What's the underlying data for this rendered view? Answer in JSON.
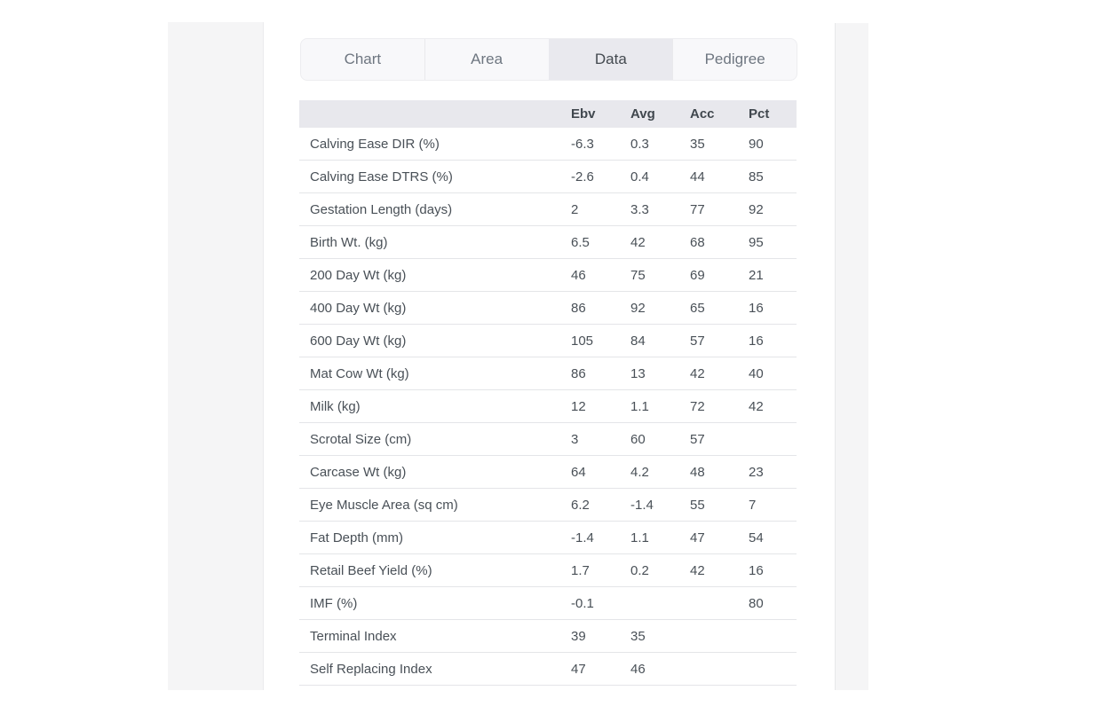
{
  "tabs": {
    "items": [
      {
        "label": "Chart",
        "active": false
      },
      {
        "label": "Area",
        "active": false
      },
      {
        "label": "Data",
        "active": true
      },
      {
        "label": "Pedigree",
        "active": false
      }
    ]
  },
  "table": {
    "columns": [
      "Ebv",
      "Avg",
      "Acc",
      "Pct"
    ],
    "rows": [
      {
        "label": "Calving Ease DIR (%)",
        "values": [
          "-6.3",
          "0.3",
          "35",
          "90"
        ]
      },
      {
        "label": "Calving Ease DTRS (%)",
        "values": [
          "-2.6",
          "0.4",
          "44",
          "85"
        ]
      },
      {
        "label": "Gestation Length (days)",
        "values": [
          "2",
          "3.3",
          "77",
          "92"
        ]
      },
      {
        "label": "Birth Wt. (kg)",
        "values": [
          "6.5",
          "42",
          "68",
          "95"
        ]
      },
      {
        "label": "200 Day Wt (kg)",
        "values": [
          "46",
          "75",
          "69",
          "21"
        ]
      },
      {
        "label": "400 Day Wt (kg)",
        "values": [
          "86",
          "92",
          "65",
          "16"
        ]
      },
      {
        "label": "600 Day Wt (kg)",
        "values": [
          "105",
          "84",
          "57",
          "16"
        ]
      },
      {
        "label": "Mat Cow Wt (kg)",
        "values": [
          "86",
          "13",
          "42",
          "40"
        ]
      },
      {
        "label": "Milk (kg)",
        "values": [
          "12",
          "1.1",
          "72",
          "42"
        ]
      },
      {
        "label": "Scrotal Size (cm)",
        "values": [
          "3",
          "60",
          "57",
          ""
        ]
      },
      {
        "label": "Carcase Wt (kg)",
        "values": [
          "64",
          "4.2",
          "48",
          "23"
        ]
      },
      {
        "label": "Eye Muscle Area (sq cm)",
        "values": [
          "6.2",
          "-1.4",
          "55",
          "7"
        ]
      },
      {
        "label": "Fat Depth (mm)",
        "values": [
          "-1.4",
          "1.1",
          "47",
          "54"
        ]
      },
      {
        "label": "Retail Beef Yield (%)",
        "values": [
          "1.7",
          "0.2",
          "42",
          "16"
        ]
      },
      {
        "label": "IMF (%)",
        "values": [
          "-0.1",
          "",
          "",
          "80"
        ]
      },
      {
        "label": "Terminal Index",
        "values": [
          "39",
          "35",
          "",
          ""
        ]
      },
      {
        "label": "Self Replacing Index",
        "values": [
          "47",
          "46",
          "",
          ""
        ]
      }
    ]
  },
  "colors": {
    "active_tab_bg": "#e9e9ee",
    "table_header_bg": "#e8e8ed",
    "tab_bar_bg": "#f8f8fa",
    "side_panel_bg": "#f5f5f6",
    "row_border": "#e4e5e8",
    "text": "#495057",
    "muted_text": "#6e7680"
  }
}
